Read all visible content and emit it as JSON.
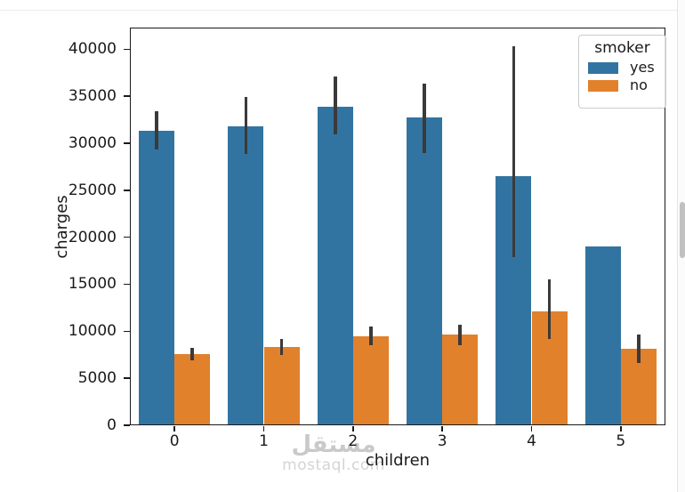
{
  "watermark": {
    "logo_text": "مستقل",
    "site_text": "mostaql.com"
  },
  "chart_data": {
    "type": "bar",
    "title": "",
    "xlabel": "children",
    "ylabel": "charges",
    "categories": [
      "0",
      "1",
      "2",
      "3",
      "4",
      "5"
    ],
    "series": [
      {
        "name": "yes",
        "color": "#3274a1",
        "values": [
          31341,
          31822,
          33844,
          32724,
          26533,
          19023
        ],
        "error_bars": [
          [
            29350,
            33450
          ],
          [
            28850,
            34900
          ],
          [
            30950,
            37050
          ],
          [
            29000,
            36300
          ],
          [
            17900,
            40300
          ],
          null
        ]
      },
      {
        "name": "no",
        "color": "#e1812c",
        "values": [
          7611,
          8303,
          9493,
          9614,
          12121,
          8184
        ],
        "error_bars": [
          [
            6900,
            8250
          ],
          [
            7450,
            9150
          ],
          [
            8550,
            10550
          ],
          [
            8550,
            10700
          ],
          [
            9200,
            15550
          ],
          [
            6650,
            9650
          ]
        ]
      }
    ],
    "legend": {
      "title": "smoker",
      "position": "upper right"
    },
    "axis": {
      "ylim": [
        0,
        42300
      ],
      "yticks": [
        0,
        5000,
        10000,
        15000,
        20000,
        25000,
        30000,
        35000,
        40000
      ]
    },
    "grid": false,
    "error_bar_color": "#3a3a3a",
    "bar_width_fraction": 0.4
  }
}
